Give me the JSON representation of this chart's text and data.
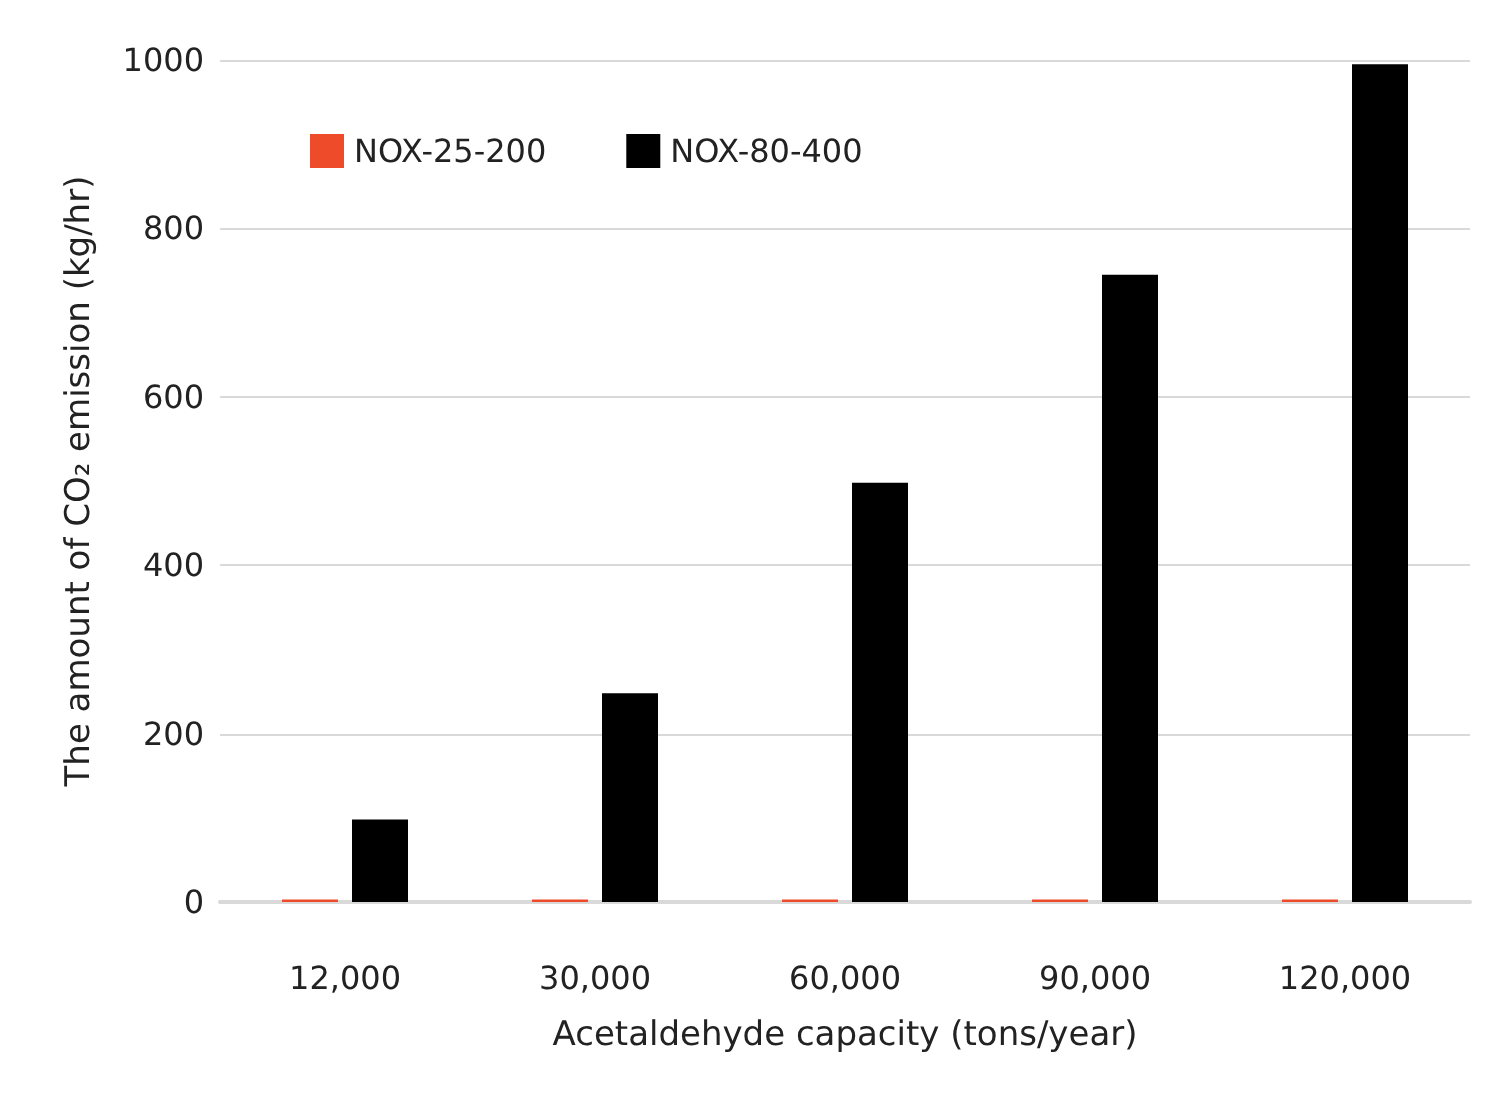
{
  "chart_data": {
    "type": "bar",
    "xlabel": "Acetaldehyde capacity (tons/year)",
    "ylabel": "The amount of CO₂ emission (kg/hr)",
    "categories": [
      "12,000",
      "30,000",
      "60,000",
      "90,000",
      "120,000"
    ],
    "series": [
      {
        "name": "NOX-25-200",
        "color": "#ee4b2b",
        "values": [
          3,
          3,
          3,
          3,
          3
        ]
      },
      {
        "name": "NOX-80-400",
        "color": "#000000",
        "values": [
          98,
          248,
          498,
          745,
          995
        ]
      }
    ],
    "ylim": [
      0,
      1000
    ],
    "yticks": [
      0,
      200,
      400,
      600,
      800,
      1000
    ],
    "grid": "y",
    "legend": "top left"
  }
}
